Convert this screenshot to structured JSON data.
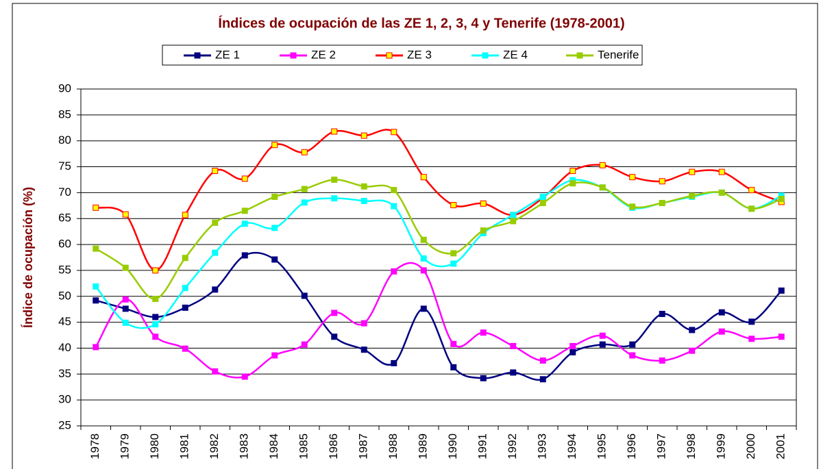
{
  "chart_data": {
    "type": "line",
    "title": "Índices de ocupación de las ZE 1, 2, 3, 4 y Tenerife (1978-2001)",
    "y_label": "Índice de ocupación (%)",
    "categories": [
      "1978",
      "1979",
      "1980",
      "1981",
      "1982",
      "1983",
      "1984",
      "1985",
      "1986",
      "1987",
      "1988",
      "1989",
      "1990",
      "1991",
      "1992",
      "1993",
      "1994",
      "1995",
      "1996",
      "1997",
      "1998",
      "1999",
      "2000",
      "2001"
    ],
    "ylim": [
      25,
      90
    ],
    "yticks": [
      25,
      30,
      35,
      40,
      45,
      50,
      55,
      60,
      65,
      70,
      75,
      80,
      85,
      90
    ],
    "grid": true,
    "legend": "top",
    "series": [
      {
        "name": "ZE 1",
        "color": "#000080",
        "values": [
          49.2,
          47.6,
          46.0,
          47.8,
          51.3,
          57.9,
          57.1,
          50.1,
          42.2,
          39.7,
          37.1,
          47.6,
          36.3,
          34.2,
          35.3,
          34.0,
          39.2,
          40.7,
          40.7,
          46.6,
          43.5,
          46.9,
          45.1,
          51.1
        ]
      },
      {
        "name": "ZE 2",
        "color": "#ff00ff",
        "values": [
          40.2,
          49.4,
          42.2,
          39.9,
          35.5,
          34.5,
          38.6,
          40.7,
          46.8,
          44.8,
          54.8,
          55.0,
          40.8,
          43.0,
          40.4,
          37.6,
          40.4,
          42.4,
          38.6,
          37.6,
          39.5,
          43.2,
          41.8,
          42.2
        ]
      },
      {
        "name": "ZE 3",
        "color": "#ff0000",
        "marker_fill": "#ffff00",
        "values": [
          67.1,
          65.8,
          55.0,
          65.7,
          74.2,
          72.7,
          79.2,
          77.8,
          81.8,
          81.0,
          81.7,
          73.0,
          67.6,
          67.9,
          65.7,
          69.0,
          74.2,
          75.3,
          73.0,
          72.2,
          74.0,
          74.0,
          70.5,
          68.2
        ]
      },
      {
        "name": "ZE 4",
        "color": "#00ffff",
        "values": [
          51.9,
          44.9,
          44.6,
          51.6,
          58.4,
          64.0,
          63.2,
          68.1,
          68.9,
          68.4,
          67.4,
          57.3,
          56.3,
          62.2,
          65.7,
          69.2,
          72.4,
          71.0,
          67.1,
          68.0,
          69.2,
          70.0,
          66.9,
          69.4
        ]
      },
      {
        "name": "Tenerife",
        "color": "#99cc00",
        "values": [
          59.2,
          55.5,
          49.5,
          57.4,
          64.2,
          66.5,
          69.2,
          70.7,
          72.5,
          71.2,
          70.5,
          60.9,
          58.3,
          62.7,
          64.5,
          68.0,
          71.8,
          71.0,
          67.3,
          68.0,
          69.4,
          70.0,
          66.9,
          68.8
        ]
      }
    ]
  }
}
